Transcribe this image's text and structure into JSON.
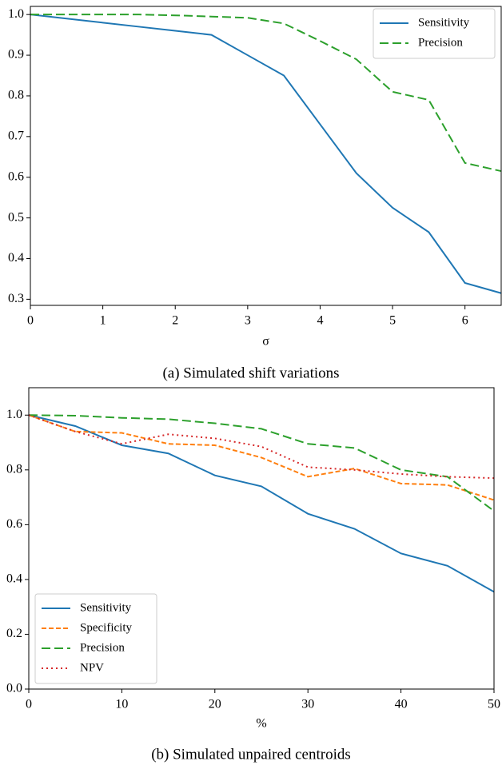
{
  "chart_data": [
    {
      "type": "line",
      "caption": "(a) Simulated shift variations",
      "xlabel": "σ",
      "x": [
        0,
        0.5,
        1,
        1.5,
        2,
        2.5,
        3,
        3.5,
        4,
        4.5,
        5,
        5.5,
        6,
        6.5
      ],
      "series": [
        {
          "name": "Sensitivity",
          "color": "#1f77b4",
          "linestyle": "solid",
          "values": [
            1.0,
            0.99,
            0.98,
            0.97,
            0.96,
            0.95,
            0.9,
            0.85,
            0.73,
            0.61,
            0.525,
            0.465,
            0.34,
            0.315
          ]
        },
        {
          "name": "Precision",
          "color": "#2ca02c",
          "linestyle": "longdash",
          "values": [
            1.0,
            1.0,
            1.0,
            1.0,
            0.998,
            0.995,
            0.992,
            0.978,
            0.935,
            0.89,
            0.81,
            0.79,
            0.635,
            0.615
          ]
        }
      ],
      "xlim": [
        0,
        6.5
      ],
      "xticks": [
        0,
        1,
        2,
        3,
        4,
        5,
        6
      ],
      "ylim": [
        0.285,
        1.02
      ],
      "yticks": [
        0.3,
        0.4,
        0.5,
        0.6,
        0.7,
        0.8,
        0.9,
        {
          "value": 1.0,
          "label": "1.0"
        }
      ],
      "grid": false,
      "legend": "upper right"
    },
    {
      "type": "line",
      "caption": "(b) Simulated unpaired centroids",
      "xlabel": "%",
      "x": [
        0,
        5,
        10,
        15,
        20,
        25,
        30,
        35,
        40,
        45,
        50
      ],
      "series": [
        {
          "name": "Sensitivity",
          "color": "#1f77b4",
          "linestyle": "solid",
          "values": [
            1.0,
            0.96,
            0.89,
            0.86,
            0.78,
            0.74,
            0.64,
            0.585,
            0.495,
            0.45,
            0.355
          ]
        },
        {
          "name": "Specificity",
          "color": "#ff7f0e",
          "linestyle": "dashed",
          "values": [
            1.0,
            0.94,
            0.935,
            0.895,
            0.89,
            0.845,
            0.775,
            0.805,
            0.75,
            0.745,
            0.69
          ]
        },
        {
          "name": "Precision",
          "color": "#2ca02c",
          "linestyle": "longdash",
          "values": [
            1.0,
            0.998,
            0.99,
            0.985,
            0.97,
            0.95,
            0.895,
            0.88,
            0.8,
            0.775,
            0.65
          ]
        },
        {
          "name": "NPV",
          "color": "#d62728",
          "linestyle": "dotted",
          "values": [
            1.0,
            0.94,
            0.895,
            0.93,
            0.915,
            0.885,
            0.81,
            0.8,
            0.785,
            0.775,
            0.77
          ]
        }
      ],
      "xlim": [
        0,
        50
      ],
      "xticks": [
        0,
        10,
        20,
        30,
        40,
        50
      ],
      "ylim": [
        0,
        1.1
      ],
      "yticks": [
        {
          "value": 0,
          "label": "0.0"
        },
        0.2,
        0.4,
        0.6,
        0.8,
        {
          "value": 1.0,
          "label": "1.0"
        }
      ],
      "grid": false,
      "legend": "lower left"
    }
  ]
}
